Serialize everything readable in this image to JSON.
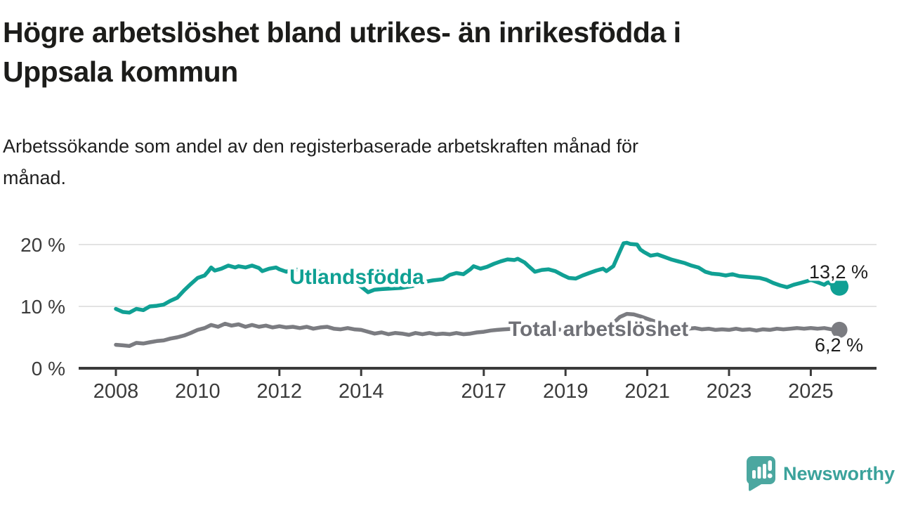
{
  "header": {
    "title_lines": [
      "Högre arbetslöshet bland utrikes- än inrikesfödda i",
      "Uppsala kommun"
    ],
    "subtitle_lines": [
      "Arbetssökande som andel av den registerbaserade arbetskraften månad för",
      "månad."
    ]
  },
  "footer": {
    "brand": "Newsworthy",
    "brand_color": "#3ba29b",
    "logo_fill": "#4ba7a0",
    "logo_icon": "speech-bubble-bar-chart-icon"
  },
  "chart_data": {
    "type": "line",
    "title": "Högre arbetslöshet bland utrikes- än inrikesfödda i Uppsala kommun",
    "subtitle": "Arbetssökande som andel av den registerbaserade arbetskraften månad för månad.",
    "unit": "%",
    "xlim": [
      2007.1,
      2026.6
    ],
    "ylim": [
      0,
      22
    ],
    "grid": "horizontal",
    "x_ticks": [
      2008,
      2010,
      2012,
      2014,
      2017,
      2019,
      2021,
      2023,
      2025
    ],
    "y_ticks": [
      {
        "value": 0,
        "label": "0 %"
      },
      {
        "value": 10,
        "label": "10 %"
      },
      {
        "value": 20,
        "label": "20 %"
      }
    ],
    "series": [
      {
        "name": "Utlandsfödda",
        "color": "#10a094",
        "label_color": "#0fa093",
        "end_label": "13,2 %",
        "end_value": 13.2,
        "points": [
          [
            2008.0,
            9.6
          ],
          [
            2008.17,
            9.1
          ],
          [
            2008.33,
            9.0
          ],
          [
            2008.5,
            9.6
          ],
          [
            2008.67,
            9.4
          ],
          [
            2008.83,
            10.0
          ],
          [
            2009.0,
            10.1
          ],
          [
            2009.17,
            10.3
          ],
          [
            2009.33,
            10.9
          ],
          [
            2009.5,
            11.4
          ],
          [
            2009.67,
            12.6
          ],
          [
            2009.83,
            13.6
          ],
          [
            2010.0,
            14.6
          ],
          [
            2010.17,
            15.0
          ],
          [
            2010.25,
            15.6
          ],
          [
            2010.33,
            16.3
          ],
          [
            2010.42,
            15.8
          ],
          [
            2010.58,
            16.1
          ],
          [
            2010.75,
            16.6
          ],
          [
            2010.92,
            16.3
          ],
          [
            2011.0,
            16.5
          ],
          [
            2011.17,
            16.3
          ],
          [
            2011.33,
            16.6
          ],
          [
            2011.5,
            16.2
          ],
          [
            2011.58,
            15.7
          ],
          [
            2011.75,
            16.1
          ],
          [
            2011.92,
            16.3
          ],
          [
            2012.0,
            16.0
          ],
          [
            2012.17,
            15.6
          ],
          [
            2012.33,
            16.0
          ],
          [
            2012.5,
            15.9
          ],
          [
            2012.67,
            15.5
          ],
          [
            2012.83,
            15.8
          ],
          [
            2013.0,
            15.6
          ],
          [
            2013.25,
            15.2
          ],
          [
            2013.5,
            14.8
          ],
          [
            2013.75,
            14.2
          ],
          [
            2014.0,
            13.2
          ],
          [
            2014.17,
            12.3
          ],
          [
            2014.33,
            12.7
          ],
          [
            2014.5,
            12.8
          ],
          [
            2014.75,
            12.9
          ],
          [
            2015.0,
            13.0
          ],
          [
            2015.25,
            13.3
          ],
          [
            2015.5,
            13.9
          ],
          [
            2015.75,
            14.2
          ],
          [
            2016.0,
            14.4
          ],
          [
            2016.17,
            15.1
          ],
          [
            2016.33,
            15.4
          ],
          [
            2016.5,
            15.2
          ],
          [
            2016.67,
            16.0
          ],
          [
            2016.75,
            16.5
          ],
          [
            2016.92,
            16.1
          ],
          [
            2017.08,
            16.4
          ],
          [
            2017.25,
            16.9
          ],
          [
            2017.42,
            17.3
          ],
          [
            2017.58,
            17.6
          ],
          [
            2017.75,
            17.5
          ],
          [
            2017.83,
            17.7
          ],
          [
            2018.0,
            17.1
          ],
          [
            2018.08,
            16.6
          ],
          [
            2018.25,
            15.6
          ],
          [
            2018.42,
            15.9
          ],
          [
            2018.58,
            16.0
          ],
          [
            2018.75,
            15.7
          ],
          [
            2018.92,
            15.1
          ],
          [
            2019.08,
            14.6
          ],
          [
            2019.25,
            14.5
          ],
          [
            2019.42,
            15.0
          ],
          [
            2019.58,
            15.4
          ],
          [
            2019.75,
            15.8
          ],
          [
            2019.92,
            16.1
          ],
          [
            2020.0,
            15.7
          ],
          [
            2020.17,
            16.5
          ],
          [
            2020.33,
            18.9
          ],
          [
            2020.42,
            20.2
          ],
          [
            2020.5,
            20.3
          ],
          [
            2020.58,
            20.1
          ],
          [
            2020.75,
            20.0
          ],
          [
            2020.83,
            19.2
          ],
          [
            2020.92,
            18.8
          ],
          [
            2021.08,
            18.2
          ],
          [
            2021.25,
            18.4
          ],
          [
            2021.42,
            18.0
          ],
          [
            2021.58,
            17.6
          ],
          [
            2021.75,
            17.3
          ],
          [
            2021.92,
            17.0
          ],
          [
            2022.08,
            16.6
          ],
          [
            2022.25,
            16.3
          ],
          [
            2022.42,
            15.6
          ],
          [
            2022.58,
            15.3
          ],
          [
            2022.75,
            15.2
          ],
          [
            2022.92,
            15.0
          ],
          [
            2023.08,
            15.2
          ],
          [
            2023.25,
            14.9
          ],
          [
            2023.42,
            14.8
          ],
          [
            2023.58,
            14.7
          ],
          [
            2023.75,
            14.6
          ],
          [
            2023.92,
            14.3
          ],
          [
            2024.08,
            13.8
          ],
          [
            2024.25,
            13.4
          ],
          [
            2024.42,
            13.1
          ],
          [
            2024.58,
            13.5
          ],
          [
            2024.75,
            13.8
          ],
          [
            2024.92,
            14.1
          ],
          [
            2025.0,
            14.3
          ],
          [
            2025.17,
            13.9
          ],
          [
            2025.33,
            13.5
          ],
          [
            2025.42,
            13.9
          ],
          [
            2025.5,
            13.6
          ],
          [
            2025.58,
            13.4
          ],
          [
            2025.7,
            13.2
          ]
        ]
      },
      {
        "name": "Total arbetslöshet",
        "color": "#7b7c81",
        "label_color": "#6f7076",
        "end_label": "6,2 %",
        "end_value": 6.2,
        "points": [
          [
            2008.0,
            3.8
          ],
          [
            2008.17,
            3.7
          ],
          [
            2008.33,
            3.6
          ],
          [
            2008.5,
            4.1
          ],
          [
            2008.67,
            4.0
          ],
          [
            2008.83,
            4.2
          ],
          [
            2009.0,
            4.4
          ],
          [
            2009.17,
            4.5
          ],
          [
            2009.33,
            4.8
          ],
          [
            2009.5,
            5.0
          ],
          [
            2009.67,
            5.3
          ],
          [
            2009.83,
            5.7
          ],
          [
            2010.0,
            6.2
          ],
          [
            2010.17,
            6.5
          ],
          [
            2010.33,
            7.0
          ],
          [
            2010.5,
            6.7
          ],
          [
            2010.67,
            7.2
          ],
          [
            2010.83,
            6.9
          ],
          [
            2011.0,
            7.1
          ],
          [
            2011.17,
            6.7
          ],
          [
            2011.33,
            7.0
          ],
          [
            2011.5,
            6.7
          ],
          [
            2011.67,
            6.9
          ],
          [
            2011.83,
            6.6
          ],
          [
            2012.0,
            6.8
          ],
          [
            2012.17,
            6.6
          ],
          [
            2012.33,
            6.7
          ],
          [
            2012.5,
            6.5
          ],
          [
            2012.67,
            6.7
          ],
          [
            2012.83,
            6.4
          ],
          [
            2013.0,
            6.6
          ],
          [
            2013.17,
            6.7
          ],
          [
            2013.33,
            6.4
          ],
          [
            2013.5,
            6.3
          ],
          [
            2013.67,
            6.5
          ],
          [
            2013.83,
            6.3
          ],
          [
            2014.0,
            6.2
          ],
          [
            2014.17,
            5.9
          ],
          [
            2014.33,
            5.6
          ],
          [
            2014.5,
            5.8
          ],
          [
            2014.67,
            5.5
          ],
          [
            2014.83,
            5.7
          ],
          [
            2015.0,
            5.6
          ],
          [
            2015.17,
            5.4
          ],
          [
            2015.33,
            5.7
          ],
          [
            2015.5,
            5.5
          ],
          [
            2015.67,
            5.7
          ],
          [
            2015.83,
            5.5
          ],
          [
            2016.0,
            5.6
          ],
          [
            2016.17,
            5.5
          ],
          [
            2016.33,
            5.7
          ],
          [
            2016.5,
            5.5
          ],
          [
            2016.67,
            5.6
          ],
          [
            2016.83,
            5.8
          ],
          [
            2017.0,
            5.9
          ],
          [
            2017.17,
            6.1
          ],
          [
            2017.33,
            6.2
          ],
          [
            2017.5,
            6.3
          ],
          [
            2017.75,
            6.4
          ],
          [
            2018.0,
            6.4
          ],
          [
            2018.25,
            6.3
          ],
          [
            2018.5,
            6.4
          ],
          [
            2018.75,
            6.3
          ],
          [
            2019.0,
            6.2
          ],
          [
            2019.25,
            6.3
          ],
          [
            2019.5,
            6.4
          ],
          [
            2019.75,
            6.5
          ],
          [
            2020.0,
            6.7
          ],
          [
            2020.17,
            7.3
          ],
          [
            2020.33,
            8.3
          ],
          [
            2020.5,
            8.8
          ],
          [
            2020.67,
            8.7
          ],
          [
            2020.83,
            8.4
          ],
          [
            2021.0,
            8.0
          ],
          [
            2021.17,
            7.6
          ],
          [
            2021.33,
            7.2
          ],
          [
            2021.5,
            6.9
          ],
          [
            2021.67,
            6.6
          ],
          [
            2021.83,
            6.5
          ],
          [
            2022.0,
            6.4
          ],
          [
            2022.17,
            6.5
          ],
          [
            2022.33,
            6.3
          ],
          [
            2022.5,
            6.4
          ],
          [
            2022.67,
            6.2
          ],
          [
            2022.83,
            6.3
          ],
          [
            2023.0,
            6.2
          ],
          [
            2023.17,
            6.4
          ],
          [
            2023.33,
            6.2
          ],
          [
            2023.5,
            6.3
          ],
          [
            2023.67,
            6.1
          ],
          [
            2023.83,
            6.3
          ],
          [
            2024.0,
            6.2
          ],
          [
            2024.17,
            6.4
          ],
          [
            2024.33,
            6.3
          ],
          [
            2024.5,
            6.4
          ],
          [
            2024.67,
            6.5
          ],
          [
            2024.83,
            6.4
          ],
          [
            2025.0,
            6.5
          ],
          [
            2025.17,
            6.4
          ],
          [
            2025.33,
            6.5
          ],
          [
            2025.5,
            6.3
          ],
          [
            2025.7,
            6.2
          ]
        ]
      }
    ]
  }
}
